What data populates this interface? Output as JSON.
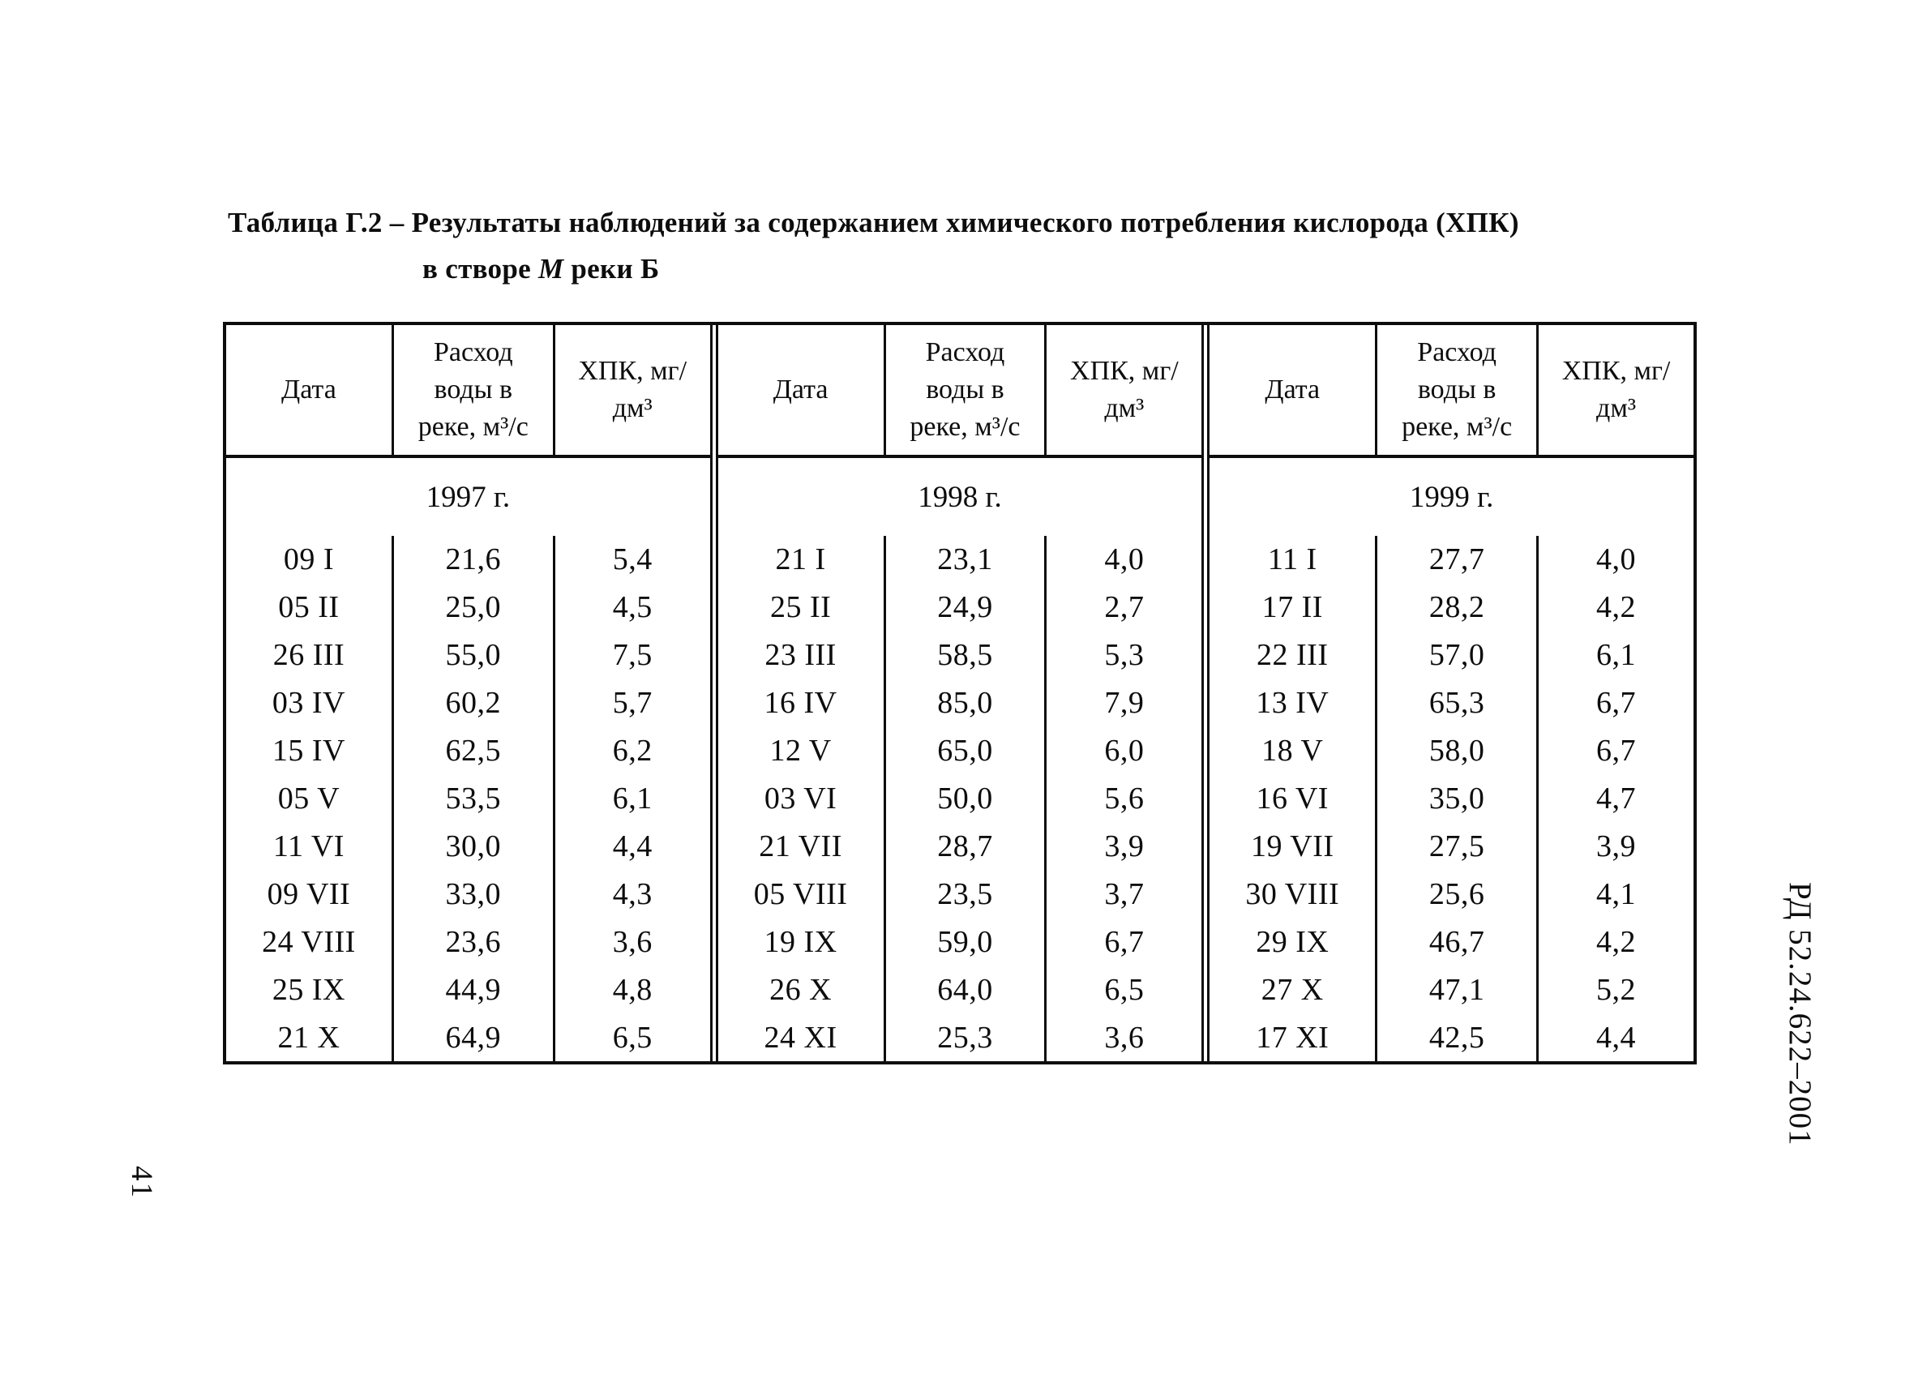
{
  "page": {
    "page_number": "41",
    "side_label": "РД 52.24.622–2001"
  },
  "title": {
    "line1": "Таблица Г.2 – Результаты наблюдений за содержанием химического потребления кислорода (ХПК)",
    "line2_prefix": "в створе",
    "line2_emphasis": "М",
    "line2_suffix": "реки Б"
  },
  "table": {
    "column_headers": [
      "Дата",
      "Расход воды в реке, м³/с",
      "ХПК, мг/дм³"
    ],
    "groups": [
      {
        "year": "1997 г.",
        "rows": [
          [
            "09 I",
            "21,6",
            "5,4"
          ],
          [
            "05 II",
            "25,0",
            "4,5"
          ],
          [
            "26 III",
            "55,0",
            "7,5"
          ],
          [
            "03 IV",
            "60,2",
            "5,7"
          ],
          [
            "15 IV",
            "62,5",
            "6,2"
          ],
          [
            "05 V",
            "53,5",
            "6,1"
          ],
          [
            "11 VI",
            "30,0",
            "4,4"
          ],
          [
            "09 VII",
            "33,0",
            "4,3"
          ],
          [
            "24 VIII",
            "23,6",
            "3,6"
          ],
          [
            "25 IX",
            "44,9",
            "4,8"
          ],
          [
            "21 X",
            "64,9",
            "6,5"
          ]
        ]
      },
      {
        "year": "1998 г.",
        "rows": [
          [
            "21 I",
            "23,1",
            "4,0"
          ],
          [
            "25 II",
            "24,9",
            "2,7"
          ],
          [
            "23 III",
            "58,5",
            "5,3"
          ],
          [
            "16 IV",
            "85,0",
            "7,9"
          ],
          [
            "12 V",
            "65,0",
            "6,0"
          ],
          [
            "03 VI",
            "50,0",
            "5,6"
          ],
          [
            "21 VII",
            "28,7",
            "3,9"
          ],
          [
            "05 VIII",
            "23,5",
            "3,7"
          ],
          [
            "19 IX",
            "59,0",
            "6,7"
          ],
          [
            "26 X",
            "64,0",
            "6,5"
          ],
          [
            "24 XI",
            "25,3",
            "3,6"
          ]
        ]
      },
      {
        "year": "1999 г.",
        "rows": [
          [
            "11 I",
            "27,7",
            "4,0"
          ],
          [
            "17 II",
            "28,2",
            "4,2"
          ],
          [
            "22 III",
            "57,0",
            "6,1"
          ],
          [
            "13 IV",
            "65,3",
            "6,7"
          ],
          [
            "18 V",
            "58,0",
            "6,7"
          ],
          [
            "16 VI",
            "35,0",
            "4,7"
          ],
          [
            "19 VII",
            "27,5",
            "3,9"
          ],
          [
            "30 VIII",
            "25,6",
            "4,1"
          ],
          [
            "29 IX",
            "46,7",
            "4,2"
          ],
          [
            "27 X",
            "47,1",
            "5,2"
          ],
          [
            "17 XI",
            "42,5",
            "4,4"
          ]
        ]
      }
    ]
  }
}
